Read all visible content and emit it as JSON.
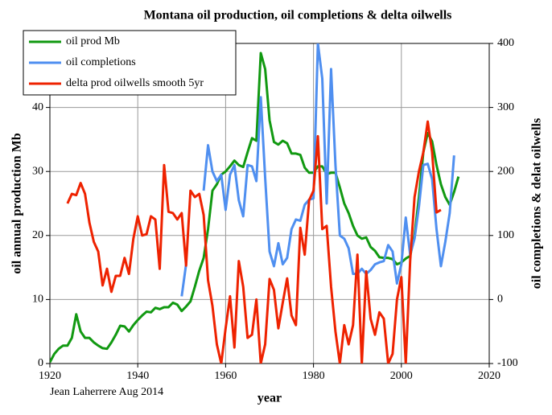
{
  "chart_data": {
    "type": "line",
    "title": "Montana oil production, oil completions & delta oilwells",
    "x_label": "year",
    "y_label": "oil annual production Mb",
    "y2_label": "oil completions & delat oilwells",
    "annotation": "Jean Laherrere Aug 2014",
    "xlim": [
      1920,
      2020
    ],
    "xticks": [
      1920,
      1940,
      1960,
      1980,
      2000,
      2020
    ],
    "ylim": [
      0,
      50
    ],
    "yticks": [
      0,
      10,
      20,
      30,
      40
    ],
    "y2lim": [
      -100,
      400
    ],
    "y2ticks": [
      -100,
      0,
      100,
      200,
      300,
      400
    ],
    "grid": true,
    "legend": "upper left",
    "x": [
      1920,
      1921,
      1922,
      1923,
      1924,
      1925,
      1926,
      1927,
      1928,
      1929,
      1930,
      1931,
      1932,
      1933,
      1934,
      1935,
      1936,
      1937,
      1938,
      1939,
      1940,
      1941,
      1942,
      1943,
      1944,
      1945,
      1946,
      1947,
      1948,
      1949,
      1950,
      1951,
      1952,
      1953,
      1954,
      1955,
      1956,
      1957,
      1958,
      1959,
      1960,
      1961,
      1962,
      1963,
      1964,
      1965,
      1966,
      1967,
      1968,
      1969,
      1970,
      1971,
      1972,
      1973,
      1974,
      1975,
      1976,
      1977,
      1978,
      1979,
      1980,
      1981,
      1982,
      1983,
      1984,
      1985,
      1986,
      1987,
      1988,
      1989,
      1990,
      1991,
      1992,
      1993,
      1994,
      1995,
      1996,
      1997,
      1998,
      1999,
      2000,
      2001,
      2002,
      2003,
      2004,
      2005,
      2006,
      2007,
      2008,
      2009,
      2010,
      2011,
      2012,
      2013
    ],
    "series": [
      {
        "name": "oil prod Mb",
        "color": "#119911",
        "axis": "y",
        "values": [
          0.2,
          1.5,
          2.3,
          2.8,
          2.8,
          4,
          7.7,
          5,
          4,
          4,
          3.3,
          2.8,
          2.4,
          2.3,
          3.3,
          4.5,
          5.9,
          5.8,
          5,
          6,
          6.8,
          7.5,
          8.1,
          8,
          8.7,
          8.5,
          8.8,
          8.8,
          9.5,
          9.2,
          8.2,
          8.9,
          9.7,
          12,
          14.5,
          16.5,
          21,
          27,
          28,
          29.5,
          30,
          30.8,
          31.7,
          31,
          30.7,
          33,
          35.2,
          34.8,
          48.5,
          46,
          38,
          34.6,
          34.2,
          34.8,
          34.4,
          32.8,
          32.8,
          32.6,
          30.6,
          29.8,
          29.8,
          30.8,
          30.8,
          29.6,
          29.8,
          29.8,
          27.5,
          25,
          23.5,
          21.5,
          20,
          19.5,
          19.7,
          18.2,
          17.6,
          16.6,
          16.5,
          16.5,
          16.3,
          15.5,
          15.8,
          16.4,
          16.8,
          20,
          26,
          33,
          36,
          34.7,
          31,
          28,
          26,
          24.8,
          26.8,
          29.2
        ]
      },
      {
        "name": "oil completions",
        "color": "#4f8ff0",
        "axis": "y2",
        "values": [
          null,
          null,
          null,
          null,
          null,
          null,
          null,
          null,
          null,
          null,
          null,
          null,
          null,
          null,
          null,
          null,
          null,
          null,
          null,
          null,
          null,
          null,
          null,
          null,
          null,
          null,
          null,
          null,
          null,
          null,
          5,
          55,
          null,
          null,
          null,
          170,
          241,
          200,
          185,
          195,
          140,
          195,
          210,
          155,
          130,
          210,
          208,
          185,
          316,
          190,
          75,
          52,
          88,
          55,
          65,
          110,
          125,
          123,
          148,
          156,
          158,
          400,
          345,
          150,
          360,
          210,
          100,
          95,
          80,
          40,
          40,
          48,
          40,
          46,
          55,
          58,
          60,
          85,
          75,
          25,
          55,
          128,
          70,
          95,
          145,
          210,
          212,
          188,
          110,
          52,
          90,
          135,
          225,
          null
        ]
      },
      {
        "name": "delta prod oilwells smooth 5yr",
        "color": "#ee2200",
        "axis": "y2",
        "values": [
          null,
          null,
          null,
          null,
          150,
          165,
          163,
          182,
          165,
          120,
          90,
          75,
          22,
          48,
          12,
          37,
          37,
          65,
          40,
          95,
          130,
          100,
          102,
          130,
          125,
          48,
          210,
          137,
          135,
          125,
          135,
          53,
          170,
          160,
          165,
          132,
          30,
          -10,
          -70,
          -100,
          -45,
          5,
          -75,
          60,
          20,
          -60,
          -55,
          0,
          -100,
          -70,
          32,
          15,
          -45,
          -5,
          33,
          -25,
          -40,
          112,
          70,
          155,
          170,
          255,
          110,
          115,
          20,
          -50,
          -100,
          -40,
          -70,
          -40,
          70,
          -100,
          44,
          -30,
          -55,
          -20,
          -30,
          -100,
          -85,
          0,
          35,
          -100,
          60,
          160,
          200,
          230,
          278,
          230,
          136,
          140,
          null,
          null,
          null,
          null
        ]
      }
    ]
  }
}
